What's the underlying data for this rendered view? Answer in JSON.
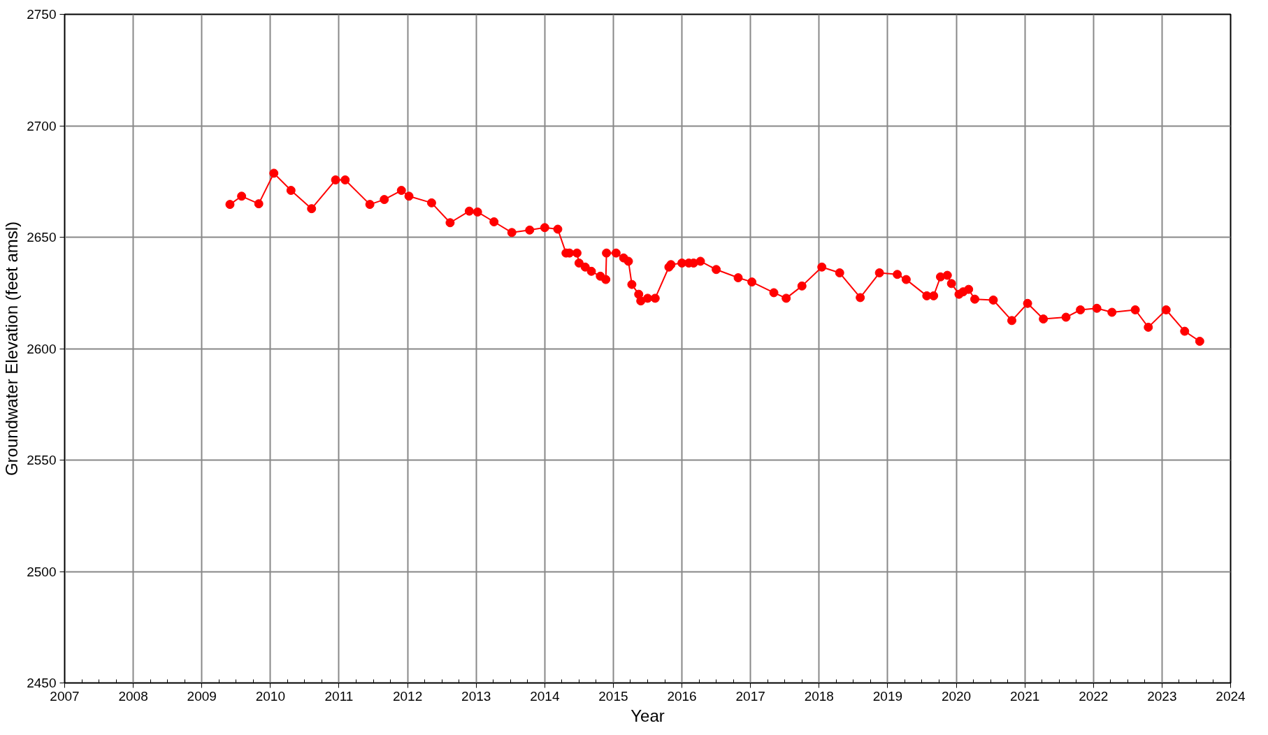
{
  "chart_data": {
    "type": "line",
    "xlabel": "Year",
    "ylabel": "Groundwater Elevation (feet amsl)",
    "x": [
      2009.41,
      2009.58,
      2009.83,
      2010.05,
      2010.3,
      2010.6,
      2010.95,
      2011.09,
      2011.45,
      2011.66,
      2011.91,
      2012.02,
      2012.35,
      2012.62,
      2012.9,
      2013.02,
      2013.26,
      2013.52,
      2013.78,
      2014.0,
      2014.19,
      2014.31,
      2014.36,
      2014.47,
      2014.5,
      2014.59,
      2014.68,
      2014.81,
      2014.89,
      2014.9,
      2015.04,
      2015.15,
      2015.22,
      2015.27,
      2015.37,
      2015.4,
      2015.5,
      2015.61,
      2015.81,
      2015.84,
      2016.0,
      2016.1,
      2016.17,
      2016.27,
      2016.5,
      2016.82,
      2017.02,
      2017.34,
      2017.52,
      2017.75,
      2018.04,
      2018.3,
      2018.6,
      2018.88,
      2019.14,
      2019.27,
      2019.57,
      2019.67,
      2019.77,
      2019.87,
      2019.93,
      2020.04,
      2020.1,
      2020.18,
      2020.27,
      2020.54,
      2020.81,
      2021.04,
      2021.27,
      2021.6,
      2021.81,
      2022.05,
      2022.27,
      2022.61,
      2022.8,
      2023.06,
      2023.33,
      2023.55
    ],
    "series": [
      {
        "color": "#ff0000",
        "values": [
          2664.7,
          2668.4,
          2665.0,
          2678.7,
          2671.0,
          2662.8,
          2675.7,
          2675.7,
          2664.7,
          2666.9,
          2671.0,
          2668.4,
          2665.4,
          2656.5,
          2661.7,
          2661.3,
          2656.9,
          2652.1,
          2653.2,
          2654.3,
          2653.6,
          2642.9,
          2642.9,
          2642.9,
          2638.4,
          2636.6,
          2634.7,
          2632.5,
          2631.0,
          2642.9,
          2642.9,
          2640.7,
          2639.2,
          2628.8,
          2624.4,
          2621.4,
          2622.6,
          2622.6,
          2636.6,
          2637.7,
          2638.4,
          2638.4,
          2638.4,
          2639.2,
          2635.5,
          2631.8,
          2629.9,
          2625.1,
          2622.6,
          2628.1,
          2636.6,
          2634.0,
          2622.9,
          2634.0,
          2633.3,
          2631.0,
          2623.7,
          2623.7,
          2632.2,
          2632.9,
          2629.2,
          2624.4,
          2625.5,
          2626.6,
          2622.2,
          2621.8,
          2612.6,
          2620.3,
          2613.3,
          2614.1,
          2617.4,
          2618.1,
          2616.3,
          2617.4,
          2609.6,
          2617.4,
          2607.8,
          2603.3
        ]
      }
    ],
    "xlim": [
      2007,
      2024
    ],
    "xticks": [
      2007,
      2008,
      2009,
      2010,
      2011,
      2012,
      2013,
      2014,
      2015,
      2016,
      2017,
      2018,
      2019,
      2020,
      2021,
      2022,
      2023,
      2024
    ],
    "ylim": [
      2450,
      2750
    ],
    "yticks": [
      2450,
      2500,
      2550,
      2600,
      2650,
      2700,
      2750
    ],
    "grid": true,
    "marker": "circle",
    "line_style": "solid"
  }
}
